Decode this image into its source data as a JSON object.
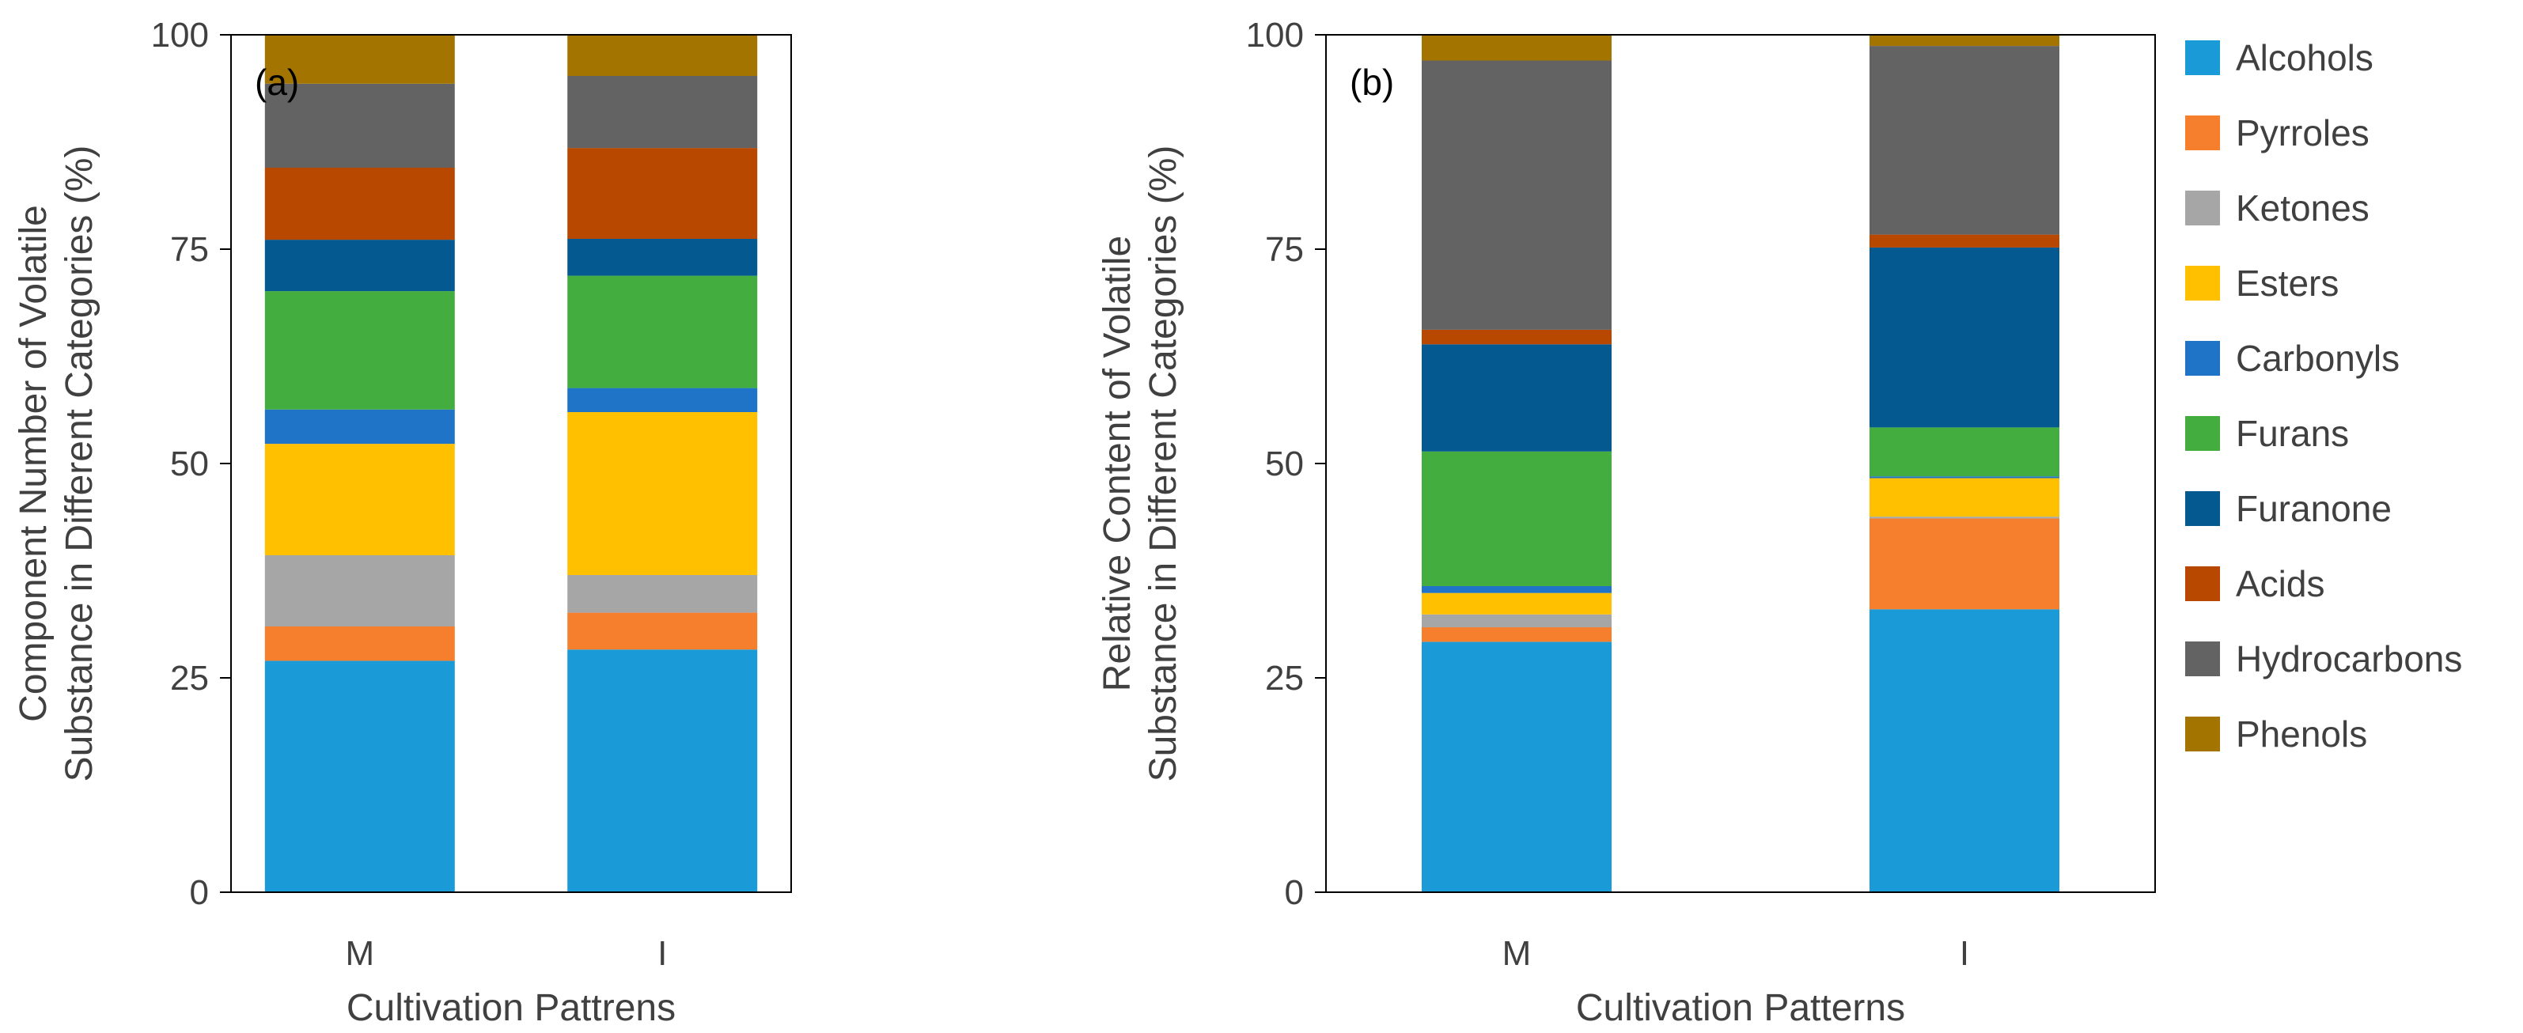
{
  "legend": {
    "placement": "right",
    "items": [
      {
        "name": "Alcohols",
        "color": "#1a9ad6"
      },
      {
        "name": "Pyrroles",
        "color": "#f57f2d"
      },
      {
        "name": "Ketones",
        "color": "#a6a6a6"
      },
      {
        "name": "Esters",
        "color": "#ffc000"
      },
      {
        "name": "Carbonyls",
        "color": "#1f74c8"
      },
      {
        "name": "Furans",
        "color": "#44ad3f"
      },
      {
        "name": "Furanone",
        "color": "#045991"
      },
      {
        "name": "Acids",
        "color": "#b84700"
      },
      {
        "name": "Hydrocarbons",
        "color": "#636363"
      },
      {
        "name": "Phenols",
        "color": "#a47400"
      }
    ]
  },
  "chart_data": [
    {
      "type": "bar",
      "stacked": true,
      "panel_label": "(a)",
      "xlabel": "Cultivation Pattrens",
      "ylabel_lines": [
        "Component Number of Volatile",
        "Substance in Different Categories (%)"
      ],
      "categories": [
        "M",
        "I"
      ],
      "ylim": [
        0,
        100
      ],
      "yticks": [
        0,
        25,
        50,
        75,
        100
      ],
      "grid": false,
      "series": [
        {
          "name": "Alcohols",
          "values": [
            27.0,
            28.3
          ]
        },
        {
          "name": "Pyrroles",
          "values": [
            4.0,
            4.3
          ]
        },
        {
          "name": "Ketones",
          "values": [
            8.3,
            4.4
          ]
        },
        {
          "name": "Esters",
          "values": [
            13.0,
            19.0
          ]
        },
        {
          "name": "Carbonyls",
          "values": [
            4.0,
            2.8
          ]
        },
        {
          "name": "Furans",
          "values": [
            13.8,
            13.1
          ]
        },
        {
          "name": "Furanone",
          "values": [
            6.0,
            4.3
          ]
        },
        {
          "name": "Acids",
          "values": [
            8.4,
            10.6
          ]
        },
        {
          "name": "Hydrocarbons",
          "values": [
            9.8,
            8.4
          ]
        },
        {
          "name": "Phenols",
          "values": [
            5.7,
            4.8
          ]
        }
      ]
    },
    {
      "type": "bar",
      "stacked": true,
      "panel_label": "(b)",
      "xlabel": "Cultivation Patterns",
      "ylabel_lines": [
        "Relative Content of Volatile",
        "Substance in Different Categories (%)"
      ],
      "categories": [
        "M",
        "I"
      ],
      "ylim": [
        0,
        100
      ],
      "yticks": [
        0,
        25,
        50,
        75,
        100
      ],
      "grid": false,
      "series": [
        {
          "name": "Alcohols",
          "values": [
            29.2,
            33.0
          ]
        },
        {
          "name": "Pyrroles",
          "values": [
            1.7,
            10.6
          ]
        },
        {
          "name": "Ketones",
          "values": [
            1.5,
            0.2
          ]
        },
        {
          "name": "Esters",
          "values": [
            2.5,
            4.5
          ]
        },
        {
          "name": "Carbonyls",
          "values": [
            0.8,
            0.2
          ]
        },
        {
          "name": "Furans",
          "values": [
            15.7,
            5.7
          ]
        },
        {
          "name": "Furanone",
          "values": [
            12.5,
            21.0
          ]
        },
        {
          "name": "Acids",
          "values": [
            1.7,
            1.5
          ]
        },
        {
          "name": "Hydrocarbons",
          "values": [
            31.4,
            22.0
          ]
        },
        {
          "name": "Phenols",
          "values": [
            3.0,
            1.3
          ]
        }
      ]
    }
  ]
}
